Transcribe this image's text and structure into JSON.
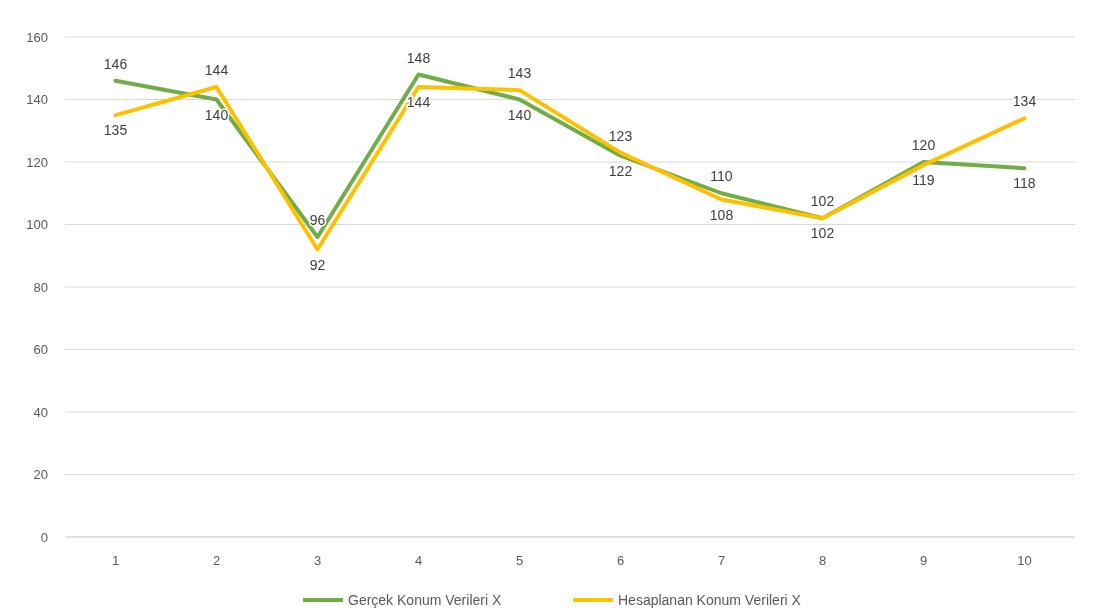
{
  "chart_data": {
    "type": "line",
    "categories": [
      "1",
      "2",
      "3",
      "4",
      "5",
      "6",
      "7",
      "8",
      "9",
      "10"
    ],
    "series": [
      {
        "name": "Gerçek Konum Verileri X",
        "color": "#70ad47",
        "values": [
          146,
          140,
          96,
          148,
          140,
          122,
          110,
          102,
          120,
          118
        ]
      },
      {
        "name": "Hesaplanan Konum Verileri X",
        "color": "#ffc000",
        "values": [
          135,
          144,
          92,
          144,
          143,
          123,
          108,
          102,
          119,
          134
        ]
      }
    ],
    "ylim": [
      0,
      160
    ],
    "yticks": [
      0,
      20,
      40,
      60,
      80,
      100,
      120,
      140,
      160
    ],
    "grid": "y",
    "legend": "bottom",
    "data_labels": true,
    "marker": "none",
    "line_style": "solid"
  }
}
